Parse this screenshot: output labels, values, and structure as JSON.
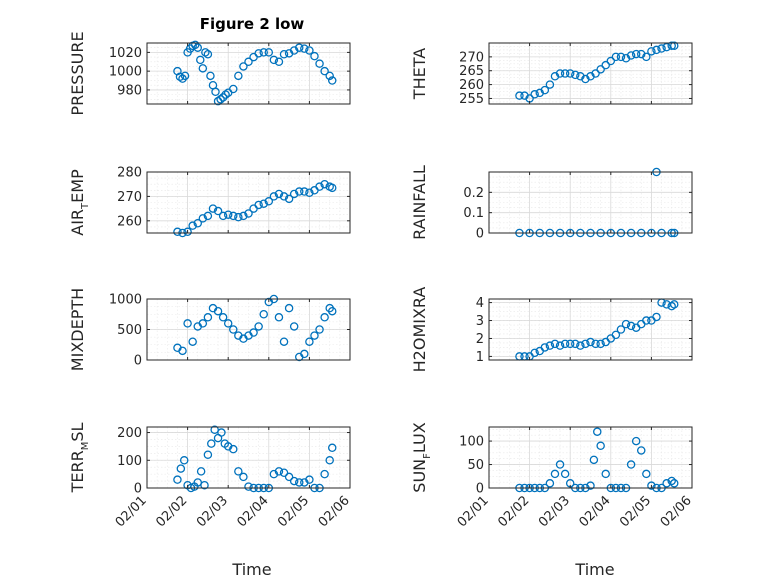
{
  "figure": {
    "title": "Figure 2 low"
  },
  "chart_data": [
    {
      "type": "scatter",
      "ylabel": "PRESSURE",
      "title": "Figure 2 low",
      "ylim": [
        965,
        1030
      ],
      "yticks": [
        980,
        1000,
        1020
      ],
      "x": [
        "02/01 18:00",
        "02/01 19:30",
        "02/01 21:00",
        "02/01 22:30",
        "02/02 00:00",
        "02/02 01:30",
        "02/02 03:00",
        "02/02 04:30",
        "02/02 06:00",
        "02/02 07:30",
        "02/02 09:00",
        "02/02 10:30",
        "02/02 12:00",
        "02/02 13:30",
        "02/02 15:00",
        "02/02 16:30",
        "02/02 18:00",
        "02/02 19:30",
        "02/02 21:00",
        "02/02 22:30",
        "02/03 00:00",
        "02/03 03:00",
        "02/03 06:00",
        "02/03 09:00",
        "02/03 12:00",
        "02/03 15:00",
        "02/03 18:00",
        "02/03 21:00",
        "02/04 00:00",
        "02/04 03:00",
        "02/04 06:00",
        "02/04 09:00",
        "02/04 12:00",
        "02/04 15:00",
        "02/04 18:00",
        "02/04 21:00",
        "02/05 00:00",
        "02/05 03:00",
        "02/05 06:00",
        "02/05 09:00",
        "02/05 12:00",
        "02/05 13:30"
      ],
      "y": [
        1000,
        994,
        992,
        995,
        1020,
        1024,
        1027,
        1028,
        1025,
        1012,
        1003,
        1020,
        1018,
        995,
        985,
        978,
        968,
        970,
        972,
        975,
        977,
        981,
        995,
        1005,
        1010,
        1015,
        1019,
        1020,
        1020,
        1012,
        1010,
        1018,
        1019,
        1022,
        1025,
        1024,
        1022,
        1016,
        1008,
        1000,
        995,
        990
      ]
    },
    {
      "type": "scatter",
      "ylabel": "THETA",
      "ylim": [
        253,
        275
      ],
      "yticks": [
        255,
        260,
        265,
        270
      ],
      "x": [
        "02/01 18:00",
        "02/01 21:00",
        "02/02 00:00",
        "02/02 03:00",
        "02/02 06:00",
        "02/02 09:00",
        "02/02 12:00",
        "02/02 15:00",
        "02/02 18:00",
        "02/02 21:00",
        "02/03 00:00",
        "02/03 03:00",
        "02/03 06:00",
        "02/03 09:00",
        "02/03 12:00",
        "02/03 15:00",
        "02/03 18:00",
        "02/03 21:00",
        "02/04 00:00",
        "02/04 03:00",
        "02/04 06:00",
        "02/04 09:00",
        "02/04 12:00",
        "02/04 15:00",
        "02/04 18:00",
        "02/04 21:00",
        "02/05 00:00",
        "02/05 03:00",
        "02/05 06:00",
        "02/05 09:00",
        "02/05 12:00",
        "02/05 13:30"
      ],
      "y": [
        256,
        256,
        255,
        256.5,
        257,
        258,
        260,
        263,
        264,
        264,
        264,
        263.5,
        263,
        262,
        263,
        264,
        265.5,
        267,
        268.5,
        270,
        270,
        269.5,
        270.5,
        271,
        271,
        270,
        272,
        272.5,
        273,
        273.5,
        274,
        274
      ]
    },
    {
      "type": "scatter",
      "ylabel": "AIR_TEMP",
      "ylabel_parts": [
        "AIR",
        "T",
        "EMP"
      ],
      "ylim": [
        255,
        280
      ],
      "yticks": [
        260,
        270,
        280
      ],
      "x": [
        "02/01 18:00",
        "02/01 21:00",
        "02/02 00:00",
        "02/02 03:00",
        "02/02 06:00",
        "02/02 09:00",
        "02/02 12:00",
        "02/02 15:00",
        "02/02 18:00",
        "02/02 21:00",
        "02/03 00:00",
        "02/03 03:00",
        "02/03 06:00",
        "02/03 09:00",
        "02/03 12:00",
        "02/03 15:00",
        "02/03 18:00",
        "02/03 21:00",
        "02/04 00:00",
        "02/04 03:00",
        "02/04 06:00",
        "02/04 09:00",
        "02/04 12:00",
        "02/04 15:00",
        "02/04 18:00",
        "02/04 21:00",
        "02/05 00:00",
        "02/05 03:00",
        "02/05 06:00",
        "02/05 09:00",
        "02/05 12:00",
        "02/05 13:30"
      ],
      "y": [
        255.5,
        255,
        255.5,
        258,
        259,
        261,
        262,
        265,
        264,
        262,
        262.5,
        262,
        261.5,
        262,
        263,
        265,
        266.5,
        267,
        268,
        270,
        271,
        270,
        269,
        271,
        272,
        272,
        271.5,
        272.5,
        274,
        275,
        274,
        273.5
      ]
    },
    {
      "type": "scatter",
      "ylabel": "RAINFALL",
      "ylim": [
        0,
        0.3
      ],
      "yticks": [
        0,
        0.1,
        0.2
      ],
      "ytick_labels": [
        "0",
        "0.1",
        "0.2"
      ],
      "x": [
        "02/01 18:00",
        "02/02 00:00",
        "02/02 06:00",
        "02/02 12:00",
        "02/02 18:00",
        "02/03 00:00",
        "02/03 06:00",
        "02/03 12:00",
        "02/03 18:00",
        "02/04 00:00",
        "02/04 06:00",
        "02/04 12:00",
        "02/04 18:00",
        "02/05 00:00",
        "02/05 03:00",
        "02/05 06:00",
        "02/05 12:00",
        "02/05 13:30"
      ],
      "y": [
        0,
        0,
        0,
        0,
        0,
        0,
        0,
        0,
        0,
        0,
        0,
        0,
        0,
        0,
        0.3,
        0,
        0,
        0
      ]
    },
    {
      "type": "scatter",
      "ylabel": "MIXDEPTH",
      "ylim": [
        0,
        1000
      ],
      "yticks": [
        0,
        500,
        1000
      ],
      "x": [
        "02/01 18:00",
        "02/01 21:00",
        "02/02 00:00",
        "02/02 03:00",
        "02/02 06:00",
        "02/02 09:00",
        "02/02 12:00",
        "02/02 15:00",
        "02/02 18:00",
        "02/02 21:00",
        "02/03 00:00",
        "02/03 03:00",
        "02/03 06:00",
        "02/03 09:00",
        "02/03 12:00",
        "02/03 15:00",
        "02/03 18:00",
        "02/03 21:00",
        "02/04 00:00",
        "02/04 03:00",
        "02/04 06:00",
        "02/04 09:00",
        "02/04 12:00",
        "02/04 15:00",
        "02/04 18:00",
        "02/04 21:00",
        "02/05 00:00",
        "02/05 03:00",
        "02/05 06:00",
        "02/05 09:00",
        "02/05 12:00",
        "02/05 13:30"
      ],
      "y": [
        200,
        150,
        600,
        300,
        550,
        600,
        700,
        850,
        800,
        700,
        600,
        500,
        400,
        350,
        400,
        450,
        550,
        750,
        950,
        1000,
        700,
        300,
        850,
        550,
        50,
        100,
        300,
        400,
        500,
        700,
        850,
        800
      ]
    },
    {
      "type": "scatter",
      "ylabel": "H2OMIXRA",
      "ylim": [
        0.8,
        4.2
      ],
      "yticks": [
        1,
        2,
        3,
        4
      ],
      "x": [
        "02/01 18:00",
        "02/01 21:00",
        "02/02 00:00",
        "02/02 03:00",
        "02/02 06:00",
        "02/02 09:00",
        "02/02 12:00",
        "02/02 15:00",
        "02/02 18:00",
        "02/02 21:00",
        "02/03 00:00",
        "02/03 03:00",
        "02/03 06:00",
        "02/03 09:00",
        "02/03 12:00",
        "02/03 15:00",
        "02/03 18:00",
        "02/03 21:00",
        "02/04 00:00",
        "02/04 03:00",
        "02/04 06:00",
        "02/04 09:00",
        "02/04 12:00",
        "02/04 15:00",
        "02/04 18:00",
        "02/04 21:00",
        "02/05 00:00",
        "02/05 03:00",
        "02/05 06:00",
        "02/05 09:00",
        "02/05 12:00",
        "02/05 13:30"
      ],
      "y": [
        1,
        1,
        1,
        1.2,
        1.3,
        1.5,
        1.6,
        1.7,
        1.6,
        1.7,
        1.7,
        1.7,
        1.6,
        1.7,
        1.8,
        1.7,
        1.7,
        1.8,
        2.0,
        2.2,
        2.5,
        2.8,
        2.7,
        2.6,
        2.8,
        3.0,
        3.0,
        3.2,
        4.0,
        3.9,
        3.8,
        3.9
      ]
    },
    {
      "type": "scatter",
      "ylabel": "TERR_MSL",
      "ylabel_parts": [
        "TERR",
        "M",
        "SL"
      ],
      "ylim": [
        0,
        220
      ],
      "yticks": [
        0,
        100,
        200
      ],
      "x": [
        "02/01 18:00",
        "02/01 20:00",
        "02/01 22:00",
        "02/02 00:00",
        "02/02 02:00",
        "02/02 04:00",
        "02/02 06:00",
        "02/02 08:00",
        "02/02 10:00",
        "02/02 12:00",
        "02/02 14:00",
        "02/02 16:00",
        "02/02 18:00",
        "02/02 20:00",
        "02/02 22:00",
        "02/03 00:00",
        "02/03 03:00",
        "02/03 06:00",
        "02/03 09:00",
        "02/03 12:00",
        "02/03 15:00",
        "02/03 18:00",
        "02/03 21:00",
        "02/04 00:00",
        "02/04 03:00",
        "02/04 06:00",
        "02/04 09:00",
        "02/04 12:00",
        "02/04 15:00",
        "02/04 18:00",
        "02/04 21:00",
        "02/05 00:00",
        "02/05 03:00",
        "02/05 06:00",
        "02/05 09:00",
        "02/05 12:00",
        "02/05 13:30"
      ],
      "y": [
        30,
        70,
        100,
        10,
        0,
        5,
        20,
        60,
        10,
        120,
        160,
        210,
        180,
        200,
        160,
        150,
        140,
        60,
        40,
        5,
        0,
        0,
        0,
        0,
        50,
        60,
        55,
        40,
        25,
        20,
        20,
        30,
        0,
        0,
        50,
        100,
        145
      ]
    },
    {
      "type": "scatter",
      "ylabel": "SUN_FLUX",
      "ylabel_parts": [
        "SUN",
        "F",
        "LUX"
      ],
      "ylim": [
        0,
        130
      ],
      "yticks": [
        0,
        50,
        100
      ],
      "x": [
        "02/01 18:00",
        "02/01 21:00",
        "02/02 00:00",
        "02/02 03:00",
        "02/02 06:00",
        "02/02 09:00",
        "02/02 12:00",
        "02/02 15:00",
        "02/02 18:00",
        "02/02 21:00",
        "02/03 00:00",
        "02/03 03:00",
        "02/03 06:00",
        "02/03 09:00",
        "02/03 12:00",
        "02/03 14:00",
        "02/03 16:00",
        "02/03 18:00",
        "02/03 21:00",
        "02/04 00:00",
        "02/04 03:00",
        "02/04 06:00",
        "02/04 09:00",
        "02/04 12:00",
        "02/04 15:00",
        "02/04 18:00",
        "02/04 21:00",
        "02/05 00:00",
        "02/05 03:00",
        "02/05 06:00",
        "02/05 09:00",
        "02/05 12:00",
        "02/05 13:30"
      ],
      "y": [
        0,
        0,
        0,
        0,
        0,
        0,
        10,
        30,
        50,
        30,
        10,
        0,
        0,
        0,
        5,
        60,
        120,
        90,
        30,
        0,
        0,
        0,
        0,
        50,
        100,
        80,
        30,
        5,
        0,
        0,
        10,
        15,
        10
      ]
    }
  ],
  "xaxis": {
    "ticks": [
      "02/01",
      "02/02",
      "02/03",
      "02/04",
      "02/05",
      "02/06"
    ],
    "label": "Time"
  }
}
